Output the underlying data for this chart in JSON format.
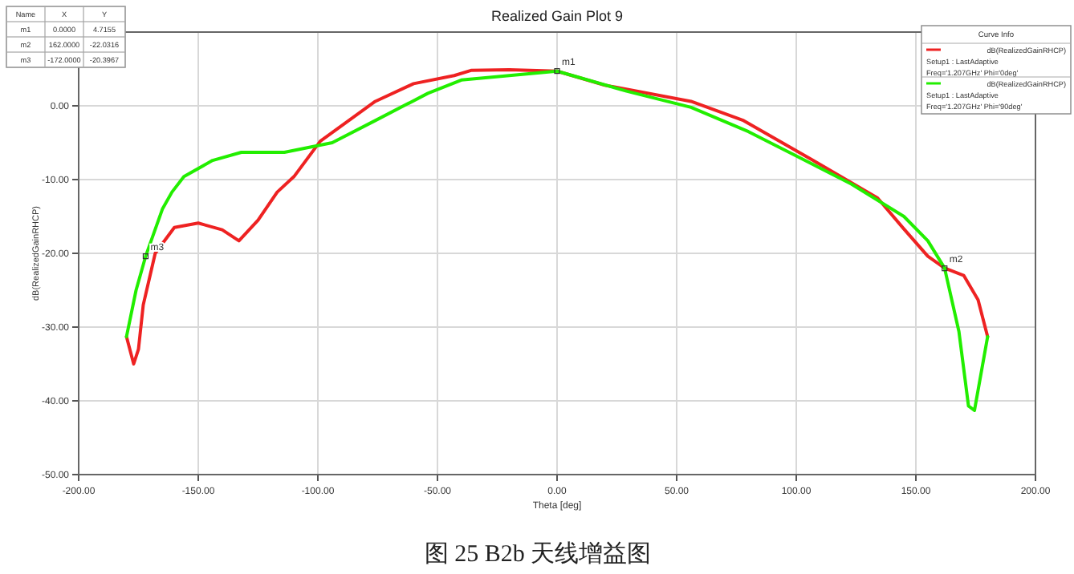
{
  "chart_data": {
    "type": "line",
    "title": "Realized Gain Plot 9",
    "xlabel": "Theta [deg]",
    "ylabel": "dB(RealizedGainRHCP)",
    "legend_title": "Curve Info",
    "legend": "top right",
    "grid": true,
    "line_style": "solid",
    "marker": "none",
    "xlim": [
      -200,
      200
    ],
    "ylim": [
      -50,
      10
    ],
    "xticks": [
      {
        "value": -200,
        "label": "-200.00"
      },
      {
        "value": -150,
        "label": "-150.00"
      },
      {
        "value": -100,
        "label": "-100.00"
      },
      {
        "value": -50,
        "label": "-50.00"
      },
      {
        "value": 0,
        "label": "0.00"
      },
      {
        "value": 50,
        "label": "50.00"
      },
      {
        "value": 100,
        "label": "100.00"
      },
      {
        "value": 150,
        "label": "150.00"
      },
      {
        "value": 200,
        "label": "200.00"
      }
    ],
    "yticks": [
      {
        "value": -50,
        "label": "-50.00"
      },
      {
        "value": -40,
        "label": "-40.00"
      },
      {
        "value": -30,
        "label": "-30.00"
      },
      {
        "value": -20,
        "label": "-20.00"
      },
      {
        "value": -10,
        "label": "-10.00"
      },
      {
        "value": 0,
        "label": "0.00"
      },
      {
        "value": 10,
        "label": null
      }
    ],
    "series": [
      {
        "name": "dB(RealizedGainRHCP)\nSetup1 : LastAdaptive\nFreq='1.207GHz' Phi='0deg'",
        "color": "#ee2222",
        "x": [
          -180,
          -177,
          -175,
          -173,
          -168,
          -160,
          -150,
          -140,
          -133,
          -125,
          -117,
          -110,
          -99,
          -76,
          -60,
          -43,
          -36,
          -20,
          0,
          20,
          56,
          78,
          107,
          134,
          145,
          155,
          162,
          170,
          176,
          180
        ],
        "values": [
          -31.3,
          -35,
          -33,
          -27,
          -20,
          -16.5,
          -15.9,
          -16.8,
          -18.3,
          -15.5,
          -11.7,
          -9.6,
          -4.8,
          0.6,
          3.0,
          4.1,
          4.8,
          4.9,
          4.7,
          2.8,
          0.6,
          -2.0,
          -7.4,
          -12.5,
          -16.7,
          -20.4,
          -22.0,
          -23,
          -26.3,
          -31.3
        ]
      },
      {
        "name": "dB(RealizedGainRHCP)\nSetup1 : LastAdaptive\nFreq='1.207GHz' Phi='90deg'",
        "color": "#22ee00",
        "x": [
          -180,
          -176,
          -172,
          -165,
          -161,
          -156,
          -144,
          -132,
          -114,
          -94,
          -76,
          -54,
          -40,
          -20,
          0,
          29,
          56,
          80,
          100,
          123,
          145,
          155,
          162,
          168,
          172,
          174.5,
          180
        ],
        "values": [
          -31.3,
          -25,
          -20.4,
          -14,
          -11.7,
          -9.6,
          -7.4,
          -6.3,
          -6.3,
          -5.0,
          -2.0,
          1.7,
          3.5,
          4.1,
          4.7,
          2.0,
          -0.2,
          -3.5,
          -6.8,
          -10.6,
          -15,
          -18.3,
          -22.0,
          -30.6,
          -40.7,
          -41.3,
          -31.3
        ]
      }
    ],
    "annotations": [
      "Name",
      "X",
      "Y",
      "m1",
      "0.0000",
      "4.7155",
      "m2",
      "162.0000",
      "-22.0316",
      "m3",
      "-172.0000",
      "-20.3967",
      {
        "text": "m1",
        "x": 0,
        "y": 4.7155
      },
      {
        "text": "m2",
        "x": 162,
        "y": -22.0316
      },
      {
        "text": "m3",
        "x": -172,
        "y": -20.3967
      },
      "图 25 B2b 天线增益图"
    ]
  }
}
